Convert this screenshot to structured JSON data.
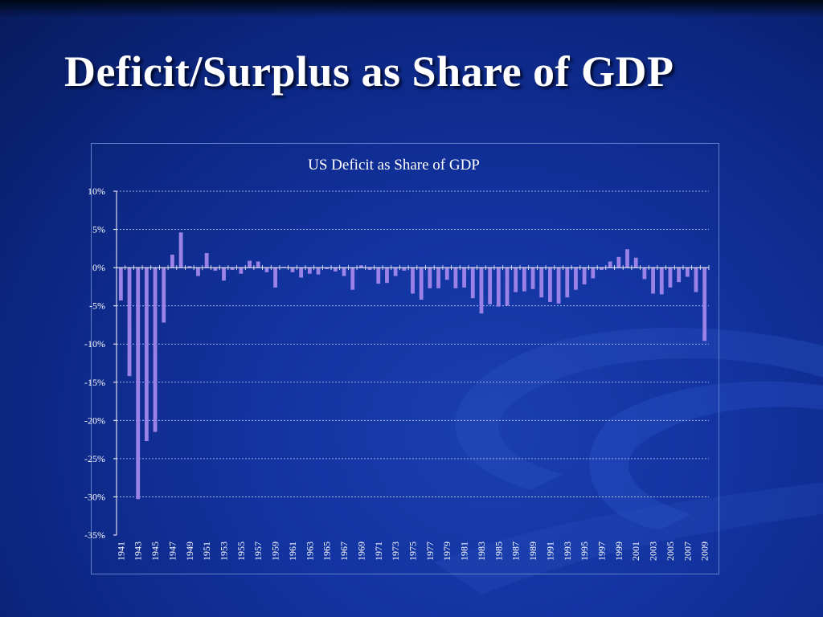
{
  "slide": {
    "title": "Deficit/Surplus as Share of GDP"
  },
  "colors": {
    "background": "#1233a0",
    "bar": "#9b82e6",
    "text": "#ffffff",
    "gridline": "#c8d0ff"
  },
  "chart_data": {
    "type": "bar",
    "title": "US Deficit as Share of GDP",
    "xlabel": "",
    "ylabel": "",
    "ylim": [
      -35,
      10
    ],
    "yticks": [
      10,
      5,
      0,
      -5,
      -10,
      -15,
      -20,
      -25,
      -30,
      -35
    ],
    "ytick_labels": [
      "10%",
      "5%",
      "0%",
      "-5%",
      "-10%",
      "-15%",
      "-20%",
      "-25%",
      "-30%",
      "-35%"
    ],
    "grid": true,
    "legend": "none",
    "x_tick_labels_shown": [
      "1941",
      "1943",
      "1945",
      "1947",
      "1949",
      "1951",
      "1953",
      "1955",
      "1957",
      "1959",
      "1961",
      "1963",
      "1965",
      "1967",
      "1969",
      "1971",
      "1973",
      "1975",
      "1977",
      "1979",
      "1981",
      "1983",
      "1985",
      "1987",
      "1989",
      "1991",
      "1993",
      "1995",
      "1997",
      "1999",
      "2001",
      "2003",
      "2005",
      "2007",
      "2009"
    ],
    "categories": [
      "1941",
      "1942",
      "1943",
      "1944",
      "1945",
      "1946",
      "1947",
      "1948",
      "1949",
      "1950",
      "1951",
      "1952",
      "1953",
      "1954",
      "1955",
      "1956",
      "1957",
      "1958",
      "1959",
      "1960",
      "1961",
      "1962",
      "1963",
      "1964",
      "1965",
      "1966",
      "1967",
      "1968",
      "1969",
      "1970",
      "1971",
      "1972",
      "1973",
      "1974",
      "1975",
      "1976",
      "1977",
      "1978",
      "1979",
      "1980",
      "1981",
      "1982",
      "1983",
      "1984",
      "1985",
      "1986",
      "1987",
      "1988",
      "1989",
      "1990",
      "1991",
      "1992",
      "1993",
      "1994",
      "1995",
      "1996",
      "1997",
      "1998",
      "1999",
      "2000",
      "2001",
      "2002",
      "2003",
      "2004",
      "2005",
      "2006",
      "2007",
      "2008",
      "2009"
    ],
    "values": [
      -4.3,
      -14.2,
      -30.3,
      -22.7,
      -21.5,
      -7.2,
      1.7,
      4.6,
      0.2,
      -1.1,
      1.9,
      -0.4,
      -1.7,
      -0.3,
      -0.8,
      0.9,
      0.8,
      -0.6,
      -2.6,
      0.1,
      -0.6,
      -1.3,
      -0.8,
      -0.9,
      -0.2,
      -0.5,
      -1.1,
      -2.9,
      0.3,
      -0.3,
      -2.1,
      -2.0,
      -1.1,
      -0.4,
      -3.4,
      -4.2,
      -2.7,
      -2.7,
      -1.6,
      -2.7,
      -2.6,
      -4.0,
      -6.0,
      -4.8,
      -5.1,
      -5.0,
      -3.2,
      -3.1,
      -2.8,
      -3.9,
      -4.5,
      -4.7,
      -3.9,
      -2.9,
      -2.2,
      -1.4,
      -0.3,
      0.8,
      1.4,
      2.4,
      1.3,
      -1.5,
      -3.4,
      -3.5,
      -2.6,
      -1.9,
      -1.2,
      -3.2,
      -9.6
    ]
  }
}
